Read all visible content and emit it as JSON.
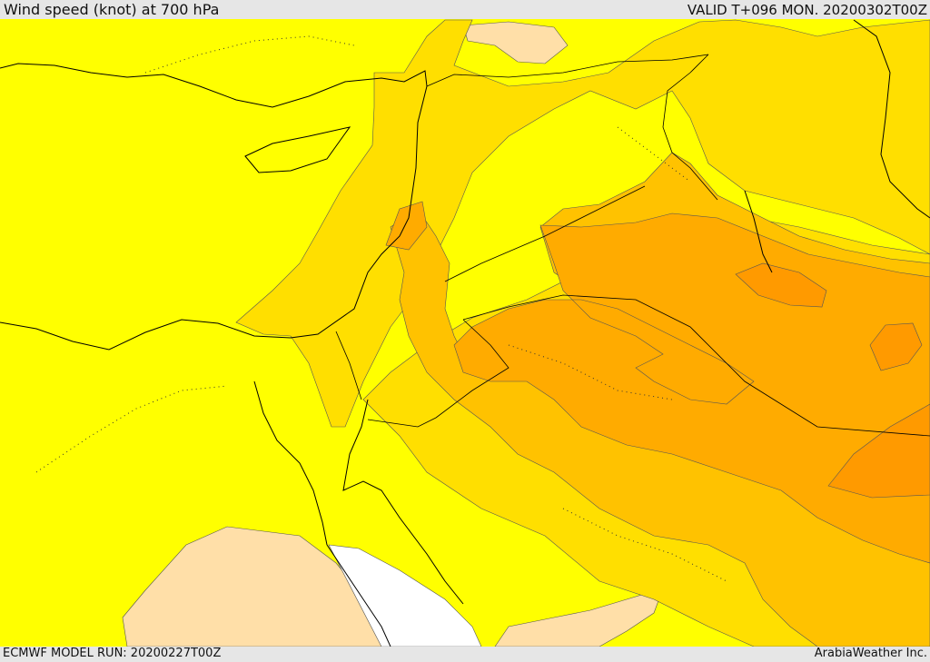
{
  "header": {
    "title": "Wind speed (knot) at 700 hPa",
    "valid": "VALID T+096 MON. 20200302T00Z"
  },
  "footer": {
    "model_run": "ECMWF MODEL RUN: 20200227T00Z",
    "credit": "ArabiaWeather Inc."
  },
  "colors": {
    "speed_lowest": "#ffffff",
    "speed_low": "#ffdfa8",
    "speed_band_1": "#ffff00",
    "speed_band_2": "#ffdf00",
    "speed_band_3": "#ffc200",
    "speed_band_4": "#ffab00",
    "speed_band_5": "#ff9a00",
    "coastline": "#000000",
    "contour": "#555555"
  }
}
